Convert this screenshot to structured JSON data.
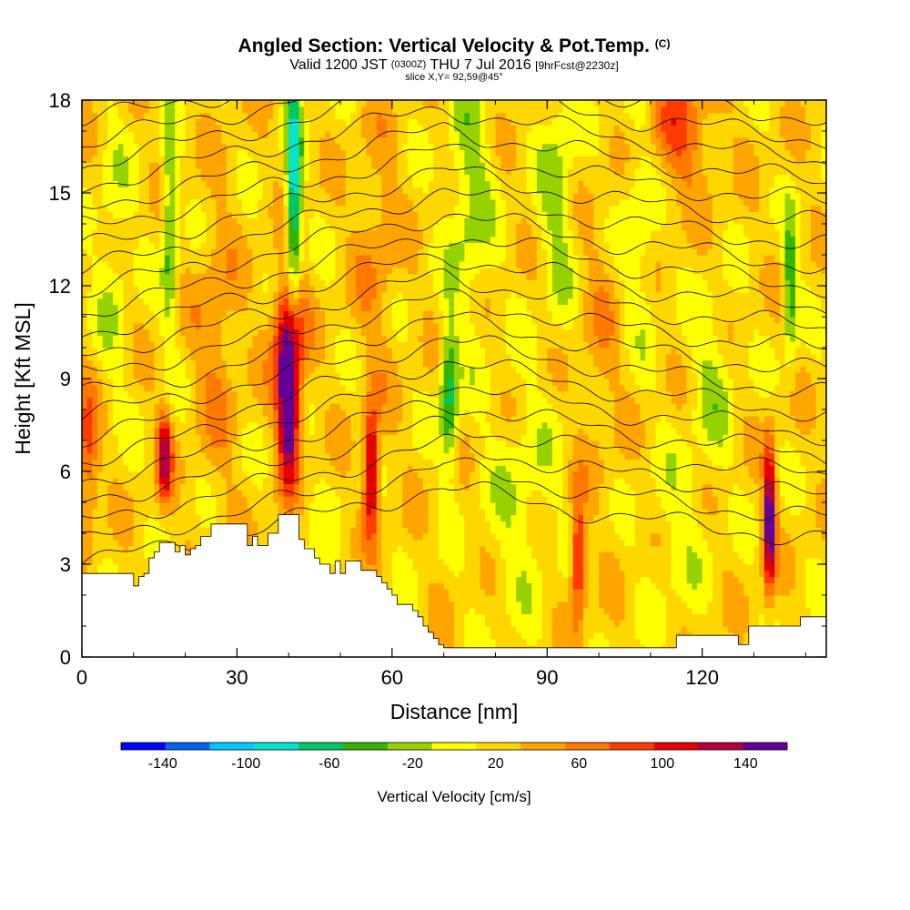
{
  "chart_data": {
    "type": "heatmap",
    "title": "Angled Section: Vertical Velocity & Pot.Temp.",
    "title_units": "(C)",
    "subtitle_parts": [
      "Valid 1200 JST",
      "(0300Z)",
      "THU 7 Jul 2016",
      "[9hrFcst@2230z]"
    ],
    "slice_label": "slice X,Y= 92,59@45°",
    "xlabel": "Distance [nm]",
    "ylabel": "Height [Kft MSL]",
    "xlim": [
      0,
      144
    ],
    "ylim": [
      0,
      18
    ],
    "x_ticks": [
      0,
      30,
      60,
      90,
      120
    ],
    "x_tick_labels": [
      "0",
      "30",
      "60",
      "90",
      "120"
    ],
    "y_ticks": [
      0,
      3,
      6,
      9,
      12,
      15,
      18
    ],
    "y_tick_labels": [
      "0",
      "3",
      "6",
      "9",
      "12",
      "15",
      "18"
    ],
    "background_value": 10,
    "features": [
      {
        "x": 40,
        "y": 8.0,
        "value": 150,
        "sx": 1.4,
        "sy": 1.6
      },
      {
        "x": 40,
        "y": 10.5,
        "value": 90,
        "sx": 2.2,
        "sy": 1.5
      },
      {
        "x": 56,
        "y": 6.0,
        "value": 120,
        "sx": 1.0,
        "sy": 1.4
      },
      {
        "x": 16,
        "y": 6.5,
        "value": 100,
        "sx": 1.0,
        "sy": 1.0
      },
      {
        "x": 133,
        "y": 4.5,
        "value": 140,
        "sx": 0.8,
        "sy": 1.6
      },
      {
        "x": 96,
        "y": 3.2,
        "value": 90,
        "sx": 1.0,
        "sy": 1.4
      },
      {
        "x": 1,
        "y": 6.5,
        "value": 60,
        "sx": 1.5,
        "sy": 1.6
      },
      {
        "x": 115,
        "y": 17.0,
        "value": 50,
        "sx": 5.0,
        "sy": 1.5
      },
      {
        "x": 41,
        "y": 15.0,
        "value": -110,
        "sx": 1.0,
        "sy": 3.0
      },
      {
        "x": 71,
        "y": 8.5,
        "value": -80,
        "sx": 1.2,
        "sy": 1.6
      },
      {
        "x": 17,
        "y": 14.0,
        "value": -60,
        "sx": 1.0,
        "sy": 2.5
      },
      {
        "x": 137,
        "y": 12.0,
        "value": -70,
        "sx": 0.9,
        "sy": 1.6
      },
      {
        "x": 75,
        "y": 15.0,
        "value": -40,
        "sx": 3.0,
        "sy": 3.0
      },
      {
        "x": 92,
        "y": 15.0,
        "value": -35,
        "sx": 2.5,
        "sy": 3.0
      },
      {
        "x": 108,
        "y": 15.0,
        "value": -35,
        "sx": 2.5,
        "sy": 3.0
      },
      {
        "x": 122,
        "y": 9.0,
        "value": -30,
        "sx": 3.0,
        "sy": 2.0
      },
      {
        "x": 85,
        "y": 5.0,
        "value": -25,
        "sx": 5.0,
        "sy": 2.5
      },
      {
        "x": 115,
        "y": 4.0,
        "value": -20,
        "sx": 4.0,
        "sy": 2.0
      },
      {
        "x": 6,
        "y": 13.0,
        "value": -25,
        "sx": 2.5,
        "sy": 3.0
      },
      {
        "x": 45,
        "y": 2.5,
        "value": -25,
        "sx": 2.0,
        "sy": 1.5
      },
      {
        "x": 26,
        "y": 10.0,
        "value": 30,
        "sx": 3.0,
        "sy": 3.0
      },
      {
        "x": 57,
        "y": 13.0,
        "value": 25,
        "sx": 3.0,
        "sy": 3.0
      },
      {
        "x": 100,
        "y": 10.0,
        "value": 20,
        "sx": 3.0,
        "sy": 3.0
      }
    ],
    "terrain": {
      "x": [
        0,
        9,
        10,
        11,
        12,
        13,
        14,
        15,
        18,
        19,
        20,
        21,
        22,
        23,
        25,
        26,
        30,
        32,
        33,
        34,
        35,
        36,
        38,
        41,
        42,
        43,
        45,
        46,
        48,
        49,
        50,
        51,
        53,
        54,
        56,
        57,
        58,
        59,
        60,
        61,
        62,
        63,
        64,
        65,
        66,
        67,
        68,
        69,
        70,
        71,
        80,
        100,
        114,
        115,
        125,
        127,
        128,
        129,
        131,
        132,
        134,
        135,
        138,
        139,
        144
      ],
      "y": [
        2.7,
        2.7,
        2.3,
        2.6,
        2.7,
        3.2,
        3.4,
        3.7,
        3.4,
        3.6,
        3.3,
        3.5,
        3.6,
        3.9,
        4.3,
        4.3,
        4.3,
        3.6,
        3.9,
        3.6,
        3.6,
        4.0,
        4.6,
        4.6,
        3.8,
        3.5,
        3.2,
        3.0,
        2.7,
        3.1,
        2.7,
        3.1,
        3.1,
        2.8,
        2.8,
        2.6,
        2.4,
        2.2,
        2.0,
        1.7,
        1.7,
        1.7,
        1.5,
        1.3,
        1.0,
        0.8,
        0.6,
        0.4,
        0.3,
        0.3,
        0.3,
        0.3,
        0.3,
        0.7,
        0.7,
        0.4,
        0.4,
        1.0,
        1.0,
        1.0,
        1.0,
        1.0,
        1.0,
        1.3,
        1.3
      ]
    },
    "pot_temp_contours": {
      "min_height": 3.0,
      "max_height": 18.0,
      "spacing": 0.68,
      "lowest_contour_crossings": [
        {
          "x": 0,
          "y": 3.0
        },
        {
          "x": 35,
          "y": 4.2
        },
        {
          "x": 70,
          "y": 5.5
        },
        {
          "x": 105,
          "y": 4.5
        },
        {
          "x": 144,
          "y": 3.8
        }
      ]
    },
    "colorbar": {
      "levels": [
        -160,
        -140,
        -120,
        -100,
        -80,
        -60,
        -40,
        -20,
        0,
        20,
        40,
        60,
        80,
        100,
        120,
        140,
        160
      ],
      "colors": [
        "#0000ff",
        "#0064f0",
        "#00c8ff",
        "#00e6c8",
        "#00c864",
        "#32b400",
        "#96d200",
        "#ffff00",
        "#ffd700",
        "#ffa500",
        "#ff7800",
        "#ff3c00",
        "#e60000",
        "#b4003c",
        "#640096"
      ],
      "tick_labels": [
        "-140",
        "-100",
        "-60",
        "-20",
        "20",
        "60",
        "100",
        "140"
      ],
      "tick_values": [
        -140,
        -100,
        -60,
        -20,
        20,
        60,
        100,
        140
      ],
      "label": "Vertical Velocity [cm/s]"
    }
  }
}
